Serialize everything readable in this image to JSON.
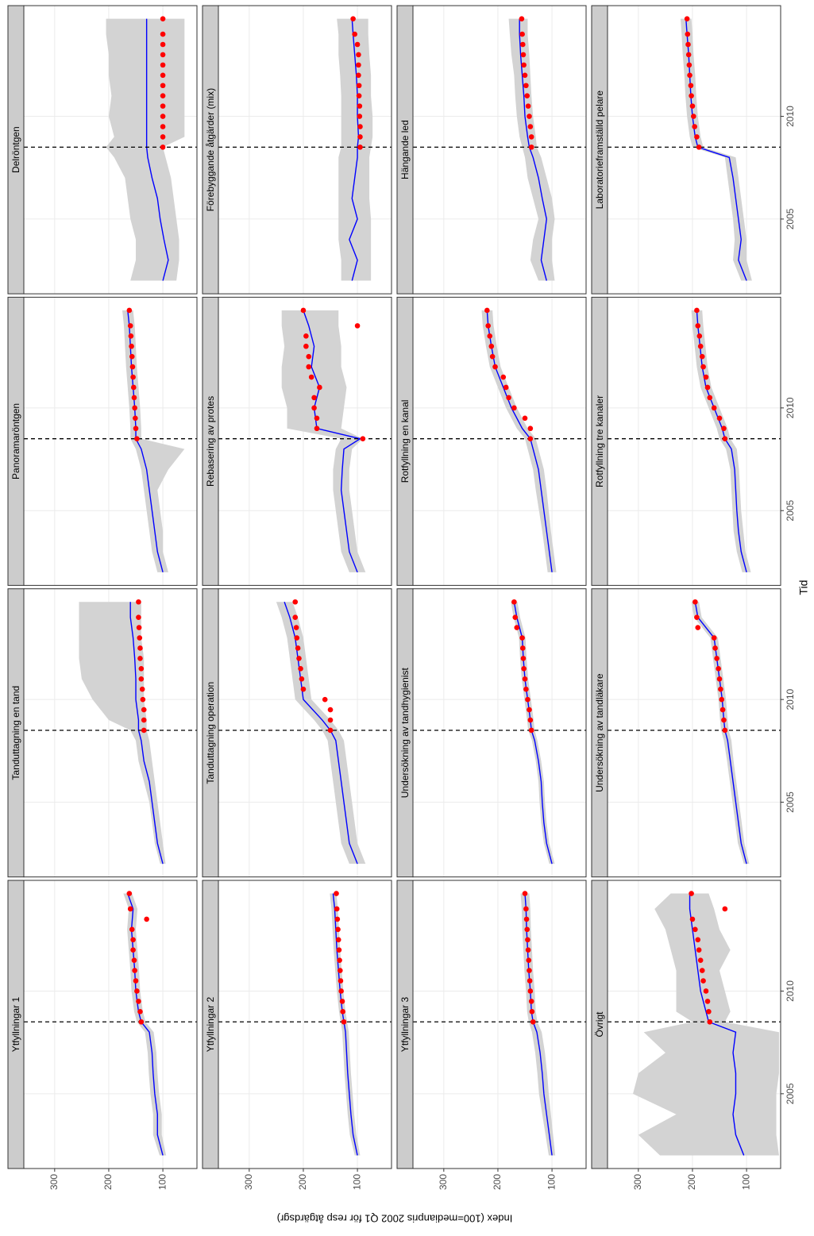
{
  "chart_data": {
    "type": "line",
    "x_label": "Tid",
    "y_label": "Index (100=medianpris 2002 Q1 för resp åtgärdsgr)",
    "xlim": [
      2001.36,
      2015.39
    ],
    "ylim": [
      37,
      357
    ],
    "xticks": [
      2005,
      2010
    ],
    "yticks": [
      100,
      200,
      300
    ],
    "grid": true,
    "reference_x": 2008.5,
    "line_color": "#0000ff",
    "band_color": "#d3d3d3",
    "point_color": "#ff0000",
    "x": [
      2002,
      2003,
      2004,
      2005,
      2006,
      2007,
      2008,
      2008.5,
      2009,
      2010,
      2011,
      2012,
      2013,
      2014,
      2014.75
    ],
    "points_x": [
      2008.5,
      2009,
      2009.5,
      2010,
      2010.5,
      2011,
      2011.5,
      2012,
      2012.5,
      2013,
      2013.5,
      2014,
      2014.75
    ],
    "panels": [
      {
        "title": "Delröntgen",
        "values": [
          100,
          90,
          98,
          105,
          110,
          120,
          128,
          130,
          130,
          130,
          130,
          130,
          130,
          130,
          130
        ],
        "low": [
          75,
          70,
          70,
          75,
          80,
          85,
          95,
          100,
          60,
          60,
          60,
          60,
          60,
          60,
          60
        ],
        "high": [
          160,
          150,
          150,
          160,
          165,
          170,
          190,
          205,
          190,
          200,
          195,
          200,
          200,
          205,
          205
        ],
        "points": [
          100,
          100,
          100,
          100,
          100,
          100,
          100,
          100,
          100,
          100,
          100,
          100,
          100
        ]
      },
      {
        "title": "Förebyggande åtgärder (mix)",
        "values": [
          110,
          100,
          115,
          100,
          110,
          105,
          100,
          100,
          98,
          100,
          100,
          102,
          105,
          108,
          110
        ],
        "low": [
          75,
          75,
          75,
          75,
          78,
          78,
          78,
          75,
          72,
          72,
          75,
          75,
          78,
          80,
          80
        ],
        "high": [
          130,
          130,
          135,
          135,
          135,
          135,
          135,
          130,
          130,
          130,
          130,
          132,
          135,
          135,
          138
        ],
        "points": [
          95,
          95,
          95,
          96,
          96,
          97,
          97,
          98,
          98,
          98,
          100,
          105,
          108
        ]
      },
      {
        "title": "Hängande led",
        "values": [
          110,
          120,
          115,
          110,
          118,
          125,
          135,
          142,
          145,
          150,
          152,
          155,
          158,
          160,
          160
        ],
        "low": [
          95,
          100,
          100,
          95,
          100,
          110,
          120,
          128,
          130,
          135,
          138,
          140,
          142,
          145,
          145
        ],
        "high": [
          125,
          140,
          135,
          125,
          135,
          145,
          150,
          155,
          160,
          165,
          168,
          170,
          175,
          178,
          180
        ],
        "points": [
          138,
          138,
          140,
          142,
          144,
          146,
          148,
          150,
          152,
          153,
          154,
          155,
          156
        ]
      },
      {
        "title": "Laboratorieframställd pelare",
        "values": [
          100,
          115,
          110,
          115,
          120,
          125,
          132,
          190,
          195,
          200,
          203,
          205,
          207,
          210,
          212
        ],
        "low": [
          90,
          100,
          100,
          105,
          110,
          115,
          120,
          180,
          185,
          190,
          193,
          195,
          198,
          200,
          202
        ],
        "high": [
          110,
          125,
          122,
          125,
          130,
          135,
          140,
          200,
          205,
          210,
          213,
          215,
          218,
          220,
          222
        ],
        "points": [
          188,
          192,
          196,
          198,
          200,
          202,
          203,
          205,
          206,
          207,
          208,
          209,
          210
        ]
      },
      {
        "title": "Panoramaröntgen",
        "values": [
          100,
          110,
          115,
          120,
          125,
          130,
          140,
          150,
          150,
          152,
          155,
          158,
          160,
          162,
          165
        ],
        "low": [
          90,
          100,
          100,
          105,
          110,
          90,
          60,
          140,
          140,
          142,
          145,
          148,
          150,
          152,
          155
        ],
        "high": [
          110,
          120,
          125,
          130,
          135,
          140,
          150,
          160,
          160,
          162,
          165,
          168,
          170,
          172,
          175
        ],
        "points": [
          148,
          150,
          151,
          152,
          153,
          154,
          155,
          156,
          157,
          158,
          159,
          160,
          162
        ]
      },
      {
        "title": "Rebasering av protes",
        "values": [
          100,
          115,
          120,
          125,
          130,
          128,
          125,
          95,
          175,
          180,
          170,
          185,
          180,
          190,
          200
        ],
        "low": [
          85,
          100,
          105,
          110,
          115,
          115,
          110,
          90,
          130,
          125,
          120,
          130,
          130,
          135,
          135
        ],
        "high": [
          115,
          130,
          135,
          140,
          145,
          145,
          140,
          130,
          230,
          230,
          240,
          240,
          235,
          240,
          240
        ],
        "points": [
          90,
          175,
          175,
          180,
          180,
          170,
          185,
          190,
          190,
          195,
          195,
          100,
          200
        ]
      },
      {
        "title": "Rotfyllning en kanal",
        "values": [
          100,
          105,
          110,
          115,
          120,
          125,
          135,
          140,
          155,
          175,
          190,
          205,
          212,
          218,
          220
        ],
        "low": [
          92,
          97,
          102,
          106,
          110,
          115,
          125,
          130,
          145,
          165,
          180,
          195,
          202,
          208,
          210
        ],
        "high": [
          108,
          113,
          118,
          124,
          130,
          135,
          145,
          150,
          165,
          185,
          200,
          215,
          222,
          228,
          230
        ],
        "points": [
          140,
          140,
          150,
          170,
          180,
          185,
          190,
          205,
          210,
          212,
          215,
          218,
          220
        ]
      },
      {
        "title": "Rotfyllning tre kanaler",
        "values": [
          100,
          110,
          115,
          118,
          120,
          122,
          128,
          140,
          145,
          160,
          175,
          182,
          186,
          190,
          192
        ],
        "low": [
          92,
          102,
          106,
          110,
          112,
          114,
          118,
          130,
          135,
          150,
          165,
          172,
          176,
          180,
          182
        ],
        "high": [
          108,
          118,
          124,
          126,
          128,
          130,
          138,
          150,
          155,
          170,
          185,
          192,
          196,
          200,
          202
        ],
        "points": [
          140,
          142,
          150,
          160,
          168,
          172,
          175,
          180,
          182,
          185,
          187,
          190,
          192
        ]
      },
      {
        "title": "Tanduttagning en tand",
        "values": [
          100,
          110,
          115,
          120,
          125,
          135,
          140,
          145,
          145,
          150,
          150,
          152,
          155,
          160,
          160
        ],
        "low": [
          95,
          100,
          105,
          110,
          115,
          120,
          125,
          130,
          130,
          135,
          135,
          135,
          140,
          140,
          140
        ],
        "high": [
          105,
          115,
          120,
          125,
          135,
          145,
          150,
          160,
          200,
          230,
          250,
          255,
          255,
          255,
          255
        ],
        "points": [
          135,
          135,
          135,
          137,
          138,
          140,
          140,
          142,
          142,
          143,
          144,
          145,
          145
        ]
      },
      {
        "title": "Tanduttagning operation",
        "values": [
          100,
          115,
          120,
          125,
          130,
          135,
          140,
          150,
          165,
          200,
          205,
          210,
          215,
          225,
          235
        ],
        "low": [
          85,
          100,
          105,
          110,
          115,
          120,
          125,
          135,
          150,
          185,
          190,
          195,
          200,
          210,
          220
        ],
        "high": [
          115,
          130,
          135,
          140,
          145,
          150,
          155,
          165,
          180,
          215,
          220,
          225,
          230,
          240,
          250
        ],
        "points": [
          150,
          150,
          150,
          160,
          200,
          203,
          205,
          208,
          210,
          212,
          213,
          215,
          215
        ]
      },
      {
        "title": "Undersökning av tandhygienist",
        "values": [
          100,
          110,
          115,
          118,
          120,
          125,
          132,
          138,
          140,
          145,
          150,
          153,
          155,
          165,
          170
        ],
        "low": [
          95,
          105,
          110,
          113,
          115,
          120,
          127,
          132,
          134,
          139,
          144,
          147,
          149,
          159,
          164
        ],
        "high": [
          105,
          115,
          120,
          123,
          125,
          130,
          137,
          144,
          146,
          151,
          156,
          159,
          161,
          171,
          176
        ],
        "points": [
          138,
          140,
          142,
          145,
          148,
          150,
          152,
          153,
          154,
          155,
          165,
          168,
          170
        ]
      },
      {
        "title": "Undersökning av tandläkare",
        "values": [
          100,
          110,
          115,
          120,
          125,
          130,
          135,
          140,
          142,
          145,
          150,
          155,
          160,
          190,
          195
        ],
        "low": [
          95,
          104,
          109,
          114,
          119,
          124,
          128,
          133,
          135,
          138,
          143,
          148,
          153,
          183,
          188
        ],
        "high": [
          105,
          116,
          121,
          126,
          131,
          136,
          142,
          147,
          149,
          152,
          157,
          162,
          167,
          197,
          202
        ],
        "points": [
          140,
          142,
          144,
          146,
          148,
          150,
          152,
          155,
          158,
          160,
          190,
          192,
          195
        ]
      },
      {
        "title": "Ytfyllningar 1",
        "values": [
          100,
          110,
          110,
          115,
          118,
          120,
          125,
          140,
          145,
          150,
          152,
          155,
          158,
          155,
          165
        ],
        "low": [
          94,
          102,
          102,
          107,
          110,
          112,
          117,
          132,
          137,
          142,
          144,
          147,
          150,
          147,
          157
        ],
        "high": [
          106,
          118,
          118,
          123,
          126,
          128,
          133,
          148,
          153,
          158,
          160,
          163,
          166,
          163,
          173
        ],
        "points": [
          140,
          142,
          145,
          148,
          150,
          152,
          153,
          155,
          155,
          157,
          130,
          160,
          162
        ]
      },
      {
        "title": "Ytfyllningar 2",
        "values": [
          100,
          108,
          112,
          115,
          118,
          120,
          122,
          125,
          128,
          132,
          135,
          138,
          140,
          142,
          145
        ],
        "low": [
          95,
          102,
          106,
          109,
          112,
          114,
          116,
          119,
          122,
          126,
          129,
          132,
          134,
          136,
          139
        ],
        "high": [
          105,
          114,
          118,
          121,
          124,
          126,
          128,
          131,
          134,
          138,
          141,
          144,
          146,
          148,
          151
        ],
        "points": [
          125,
          127,
          128,
          130,
          131,
          132,
          133,
          134,
          135,
          136,
          137,
          138,
          139
        ]
      },
      {
        "title": "Ytfyllningar 3",
        "values": [
          100,
          105,
          110,
          115,
          118,
          122,
          128,
          135,
          138,
          140,
          143,
          145,
          147,
          148,
          150
        ],
        "low": [
          94,
          98,
          102,
          106,
          109,
          113,
          119,
          127,
          130,
          132,
          135,
          137,
          139,
          140,
          142
        ],
        "high": [
          106,
          112,
          118,
          124,
          127,
          131,
          137,
          143,
          146,
          148,
          151,
          153,
          155,
          156,
          158
        ],
        "points": [
          135,
          137,
          138,
          140,
          141,
          142,
          143,
          144,
          145,
          146,
          147,
          148,
          150
        ]
      },
      {
        "title": "Övrigt",
        "values": [
          105,
          120,
          125,
          120,
          120,
          125,
          120,
          170,
          175,
          185,
          190,
          195,
          200,
          205,
          205
        ],
        "low": [
          40,
          45,
          45,
          45,
          40,
          40,
          40,
          140,
          130,
          140,
          150,
          130,
          150,
          160,
          170
        ],
        "high": [
          260,
          300,
          230,
          310,
          300,
          250,
          290,
          200,
          230,
          230,
          230,
          240,
          250,
          270,
          240
        ],
        "points": [
          168,
          170,
          172,
          175,
          180,
          182,
          185,
          188,
          190,
          195,
          200,
          140,
          202
        ]
      }
    ]
  }
}
